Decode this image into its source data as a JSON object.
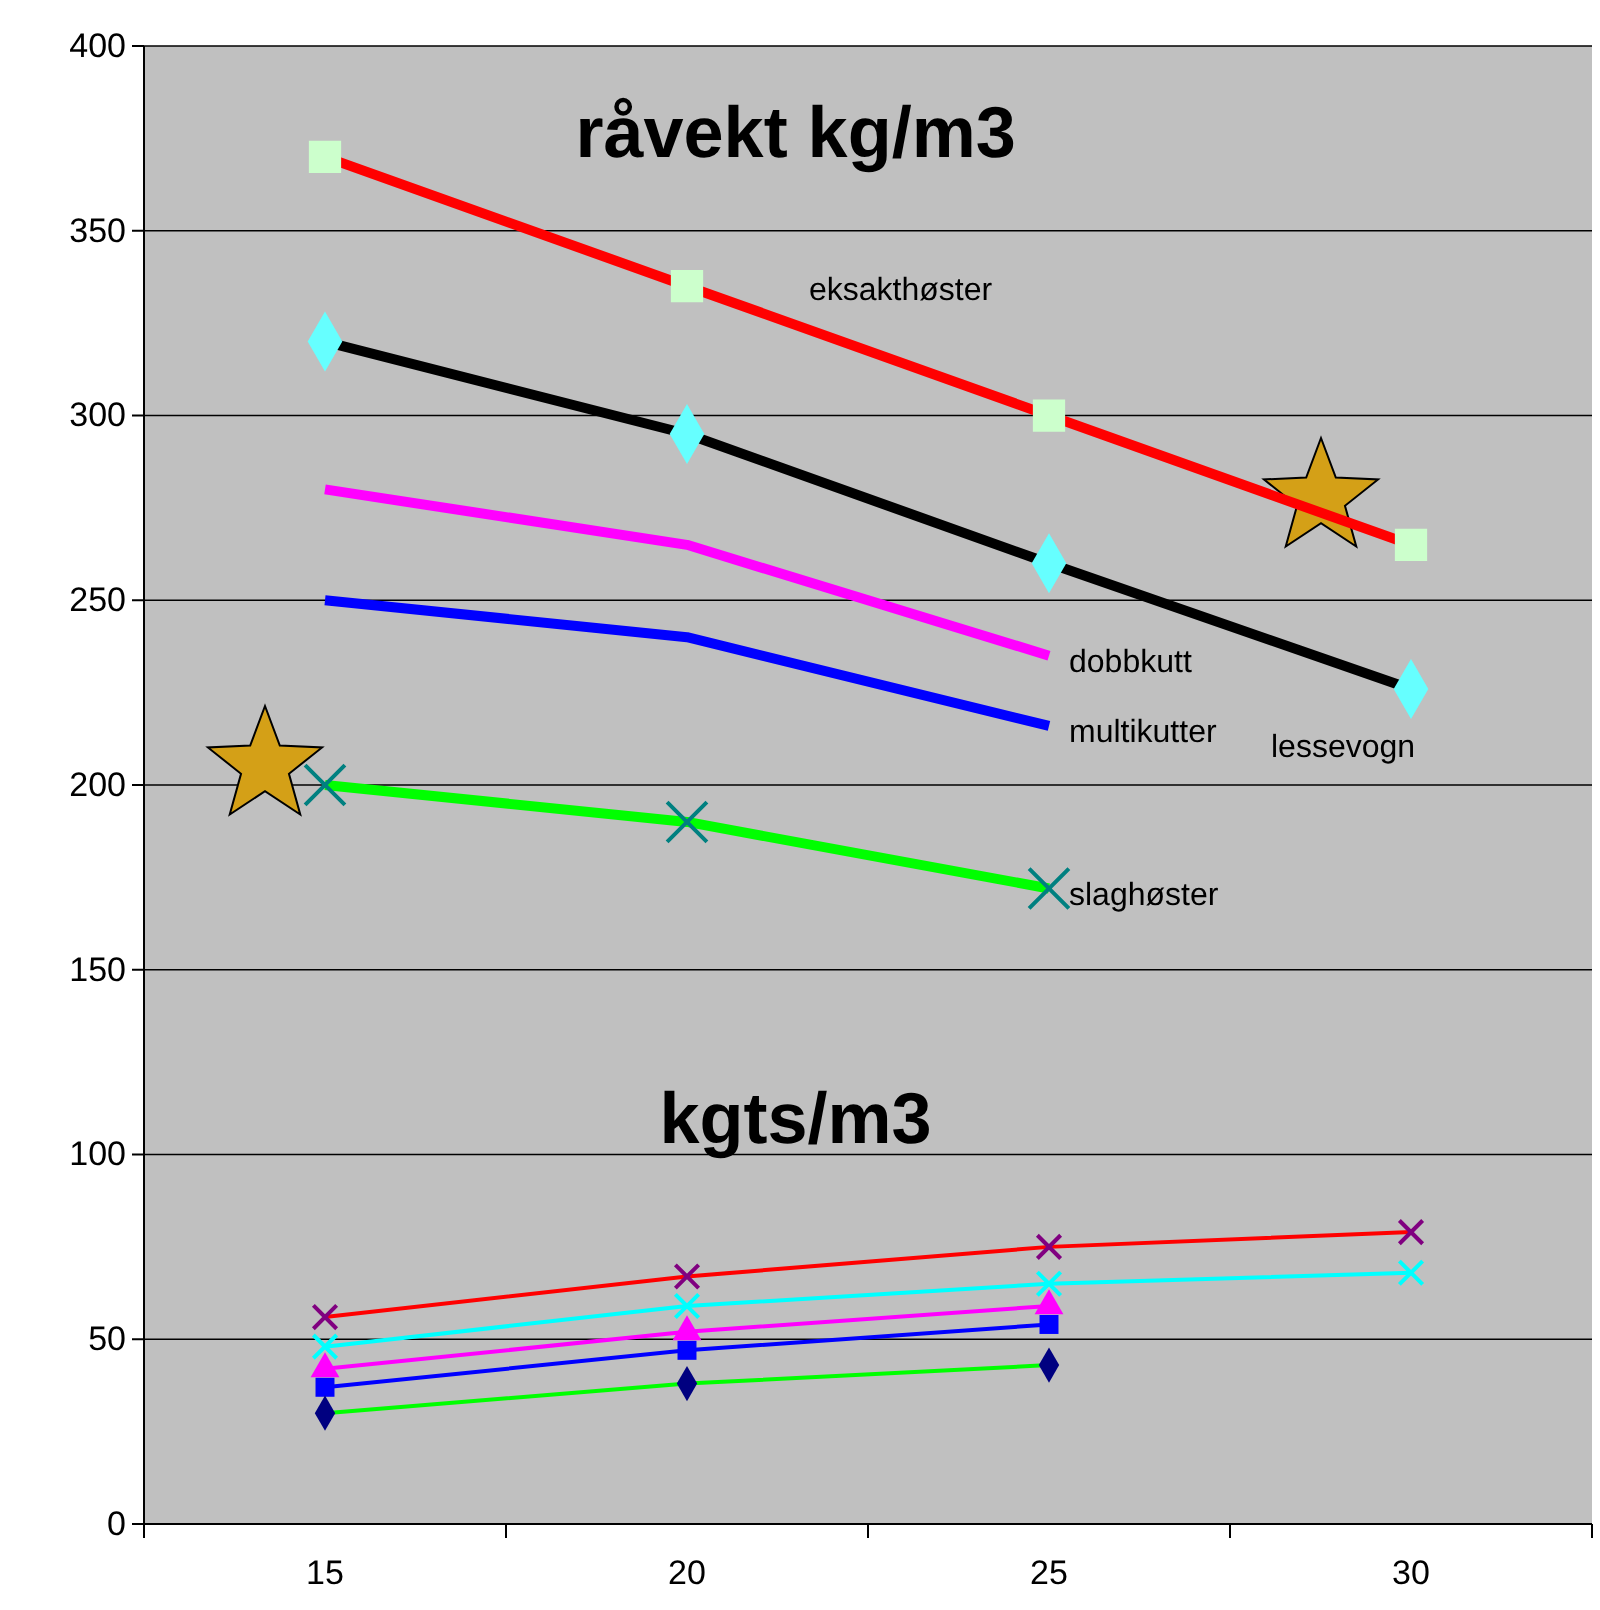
{
  "chart_data": {
    "type": "line",
    "categories": [
      "15",
      "20",
      "25",
      "30"
    ],
    "ylim": [
      0,
      400
    ],
    "yticks": [
      0,
      50,
      100,
      150,
      200,
      250,
      300,
      350,
      400
    ],
    "grid": "y",
    "legend": false,
    "annotations": [
      "råvekt kg/m3",
      "kgts/m3"
    ],
    "series": [
      {
        "name": "eksakthøster",
        "color": "#ff0000",
        "marker": "square",
        "colors": [
          "#ccffcc",
          "#ccffcc",
          "#ccffcc",
          "#ccffcc"
        ],
        "values": [
          370,
          335,
          300,
          265
        ]
      },
      {
        "name": "lessevogn",
        "color": "#000000",
        "marker": "diamond",
        "colors": [
          "#66ffff",
          "#66ffff",
          "#66ffff",
          "#66ffff"
        ],
        "values": [
          320,
          295,
          260,
          226
        ]
      },
      {
        "name": "dobbkutt",
        "color": "#ff00ff",
        "marker": "none",
        "values": [
          280,
          265,
          235,
          null
        ]
      },
      {
        "name": "multikutter",
        "color": "#0000ff",
        "marker": "none",
        "values": [
          250,
          240,
          216,
          null
        ]
      },
      {
        "name": "slaghøster",
        "color": "#00ff00",
        "marker": "cross",
        "colors": [
          "#008080",
          "#008080",
          "#008080",
          null
        ],
        "values": [
          200,
          190,
          172,
          null
        ]
      },
      {
        "color": "#ff0000",
        "marker": "cross",
        "colors": [
          "#800080",
          "#800080",
          "#800080",
          "#800080"
        ],
        "values": [
          56,
          67,
          75,
          79
        ]
      },
      {
        "color": "#00ffff",
        "marker": "cross",
        "values": [
          48,
          59,
          65,
          68
        ]
      },
      {
        "color": "#ff00ff",
        "marker": "triangle",
        "values": [
          42,
          52,
          59,
          null
        ]
      },
      {
        "color": "#0000ff",
        "marker": "square",
        "values": [
          37,
          47,
          54,
          null
        ]
      },
      {
        "color": "#00ff00",
        "marker": "diamond",
        "colors": [
          "#000080",
          "#000080",
          "#000080",
          null
        ],
        "values": [
          30,
          38,
          43,
          null
        ]
      }
    ]
  }
}
